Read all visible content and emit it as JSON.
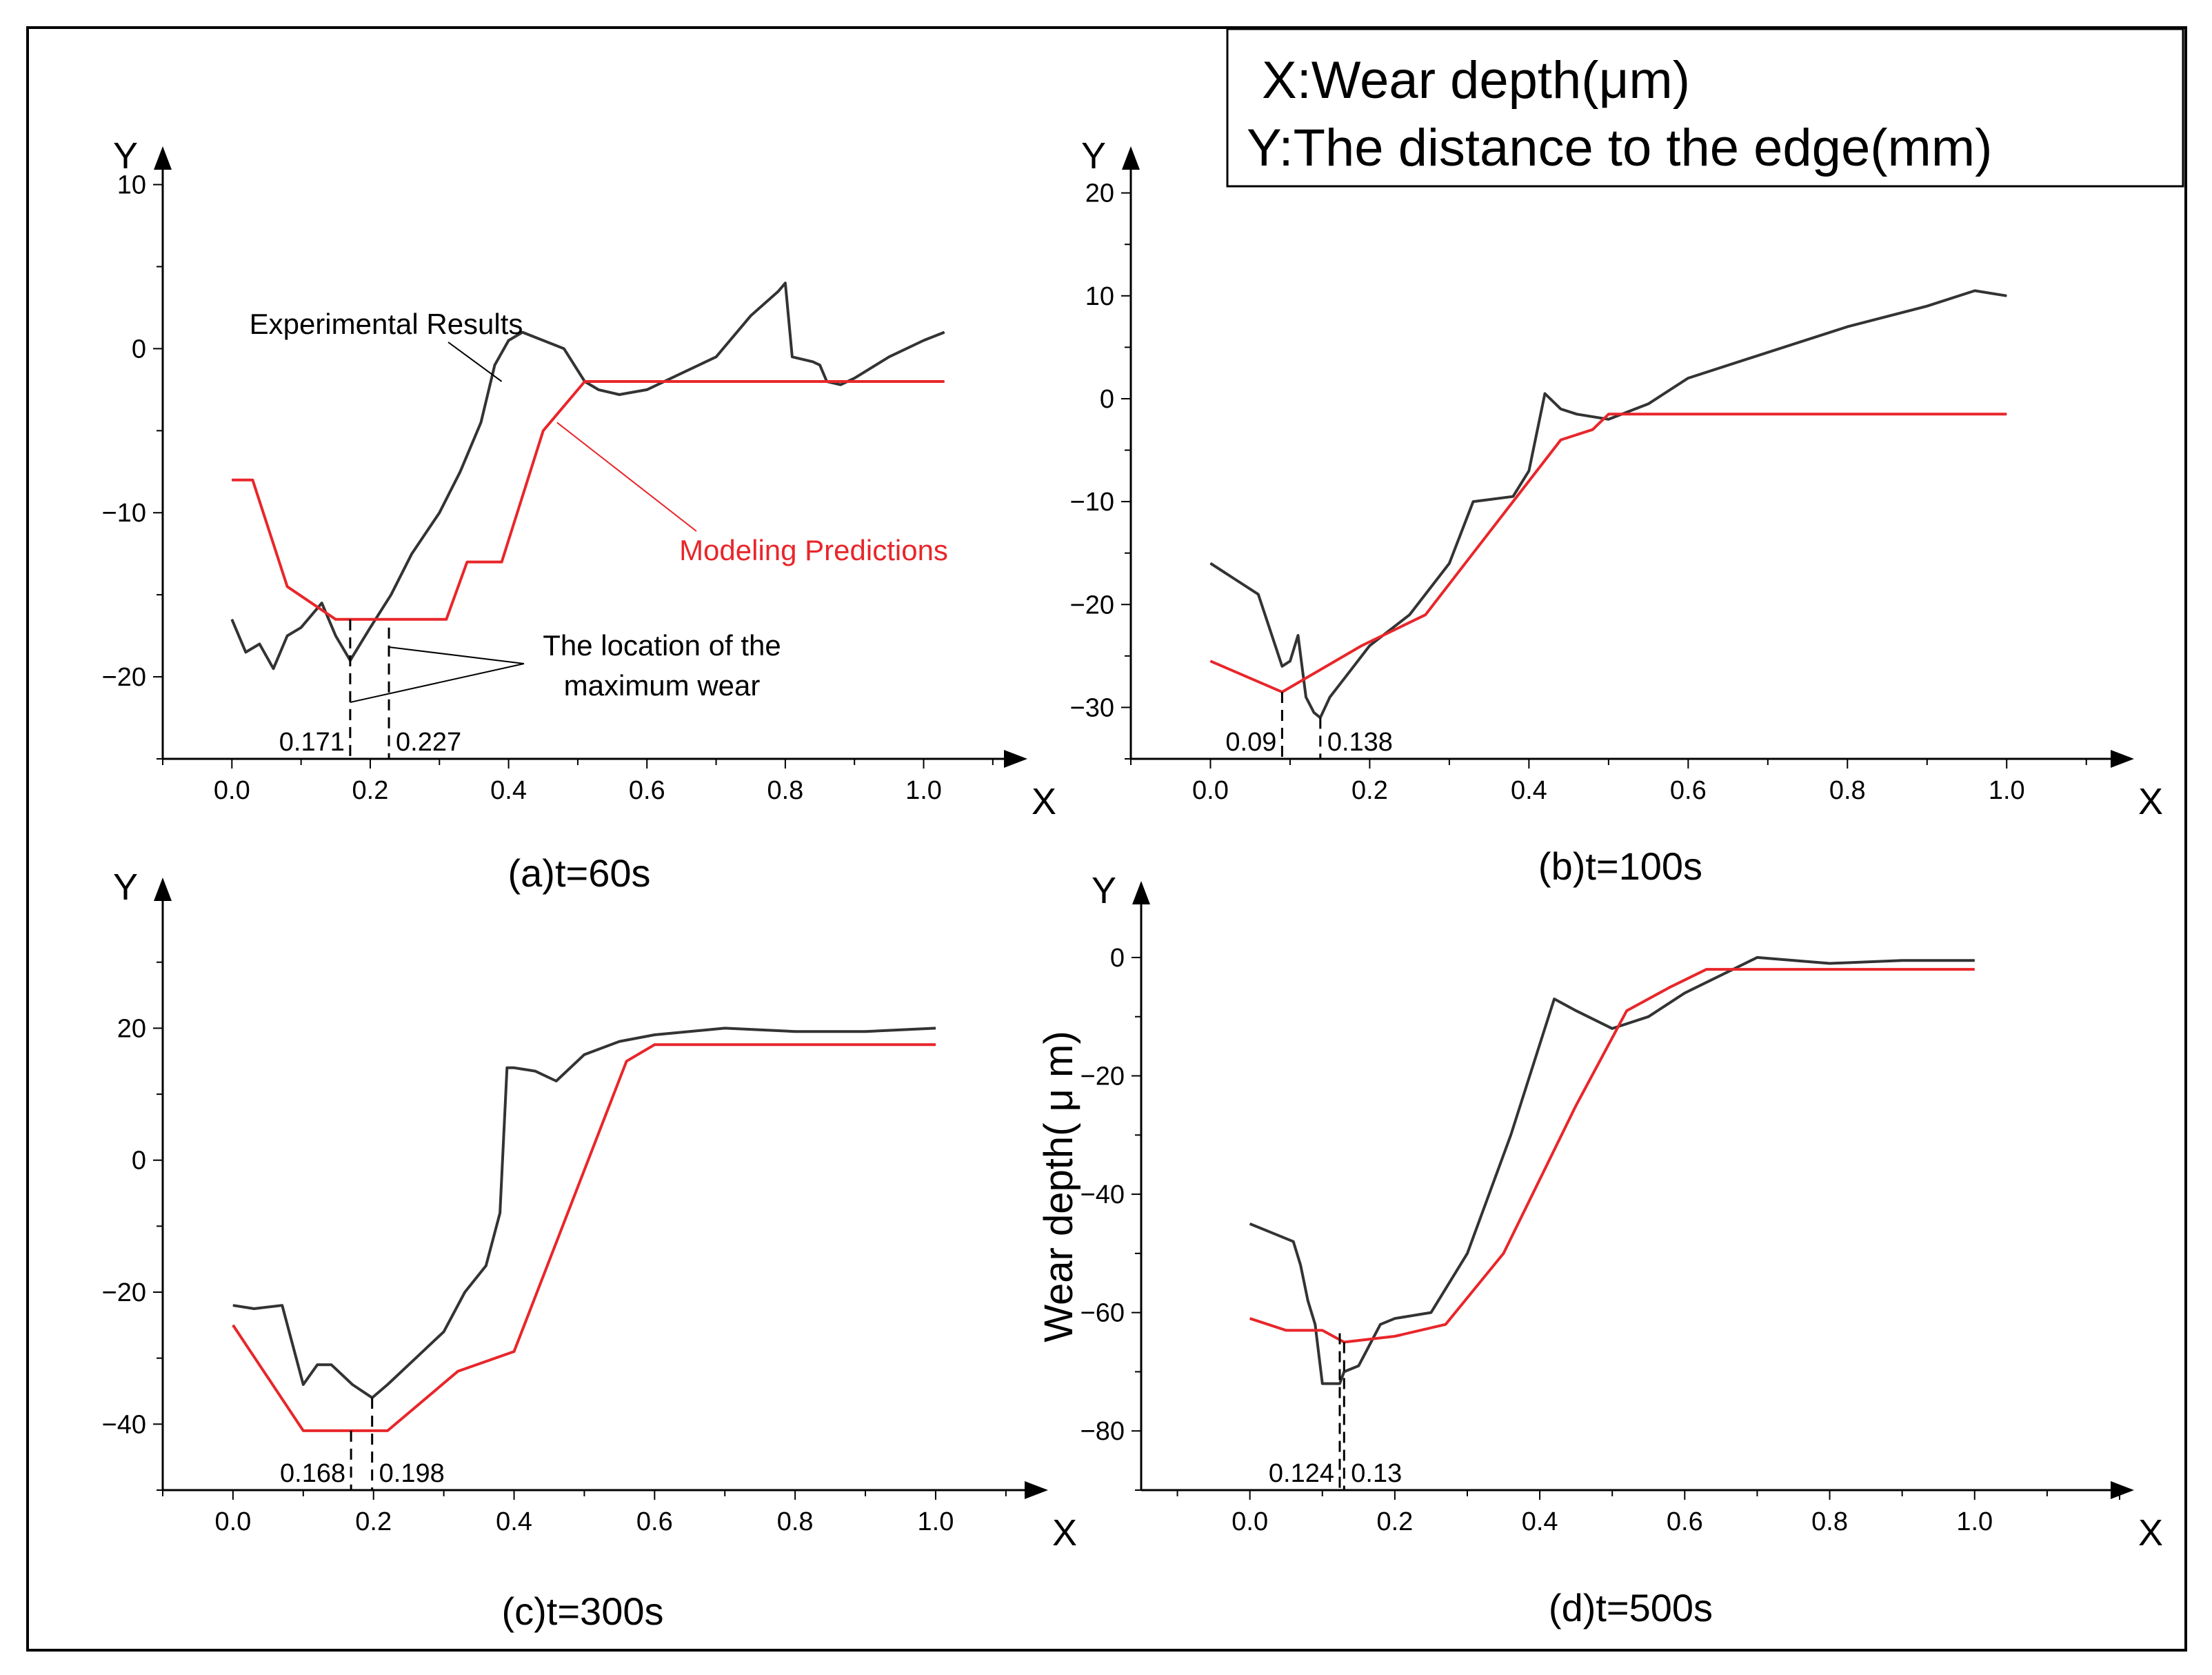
{
  "legend_box": {
    "x_def": "X:Wear depth(μm)",
    "y_def": "Y:The distance to the edge(mm)"
  },
  "colors": {
    "experimental": "#333333",
    "model": "#e8262a",
    "axis": "#000000"
  },
  "chart_data": [
    {
      "id": "a",
      "type": "line",
      "caption": "(a)t=60s",
      "xlabel": "X",
      "ylabel": "Y",
      "xticks": [
        0.0,
        0.2,
        0.4,
        0.6,
        0.8,
        1.0
      ],
      "xtick_labels": [
        "0.0",
        "0.2",
        "0.4",
        "0.6",
        "0.8",
        "1.0"
      ],
      "yticks": [
        10,
        0,
        -10,
        -20
      ],
      "ytick_labels": [
        "10",
        "0",
        "−10",
        "−20"
      ],
      "xlim": [
        -0.1,
        1.15
      ],
      "ylim": [
        -25,
        12
      ],
      "series": [
        {
          "name": "Experimental Results",
          "role": "experimental",
          "x": [
            0.0,
            0.02,
            0.04,
            0.06,
            0.08,
            0.1,
            0.12,
            0.13,
            0.15,
            0.171,
            0.2,
            0.23,
            0.26,
            0.3,
            0.33,
            0.36,
            0.38,
            0.4,
            0.42,
            0.45,
            0.48,
            0.51,
            0.53,
            0.56,
            0.6,
            0.65,
            0.7,
            0.75,
            0.79,
            0.8,
            0.81,
            0.84,
            0.85,
            0.86,
            0.88,
            0.9,
            0.95,
            1.0,
            1.03
          ],
          "y": [
            -16.5,
            -18.5,
            -18,
            -19.5,
            -17.5,
            -17,
            -16,
            -15.5,
            -17.5,
            -19,
            -17,
            -15,
            -12.5,
            -10,
            -7.5,
            -4.5,
            -1,
            0.5,
            1,
            0.5,
            0,
            -2,
            -2.5,
            -2.8,
            -2.5,
            -1.5,
            -0.5,
            2,
            3.5,
            4,
            -0.5,
            -0.8,
            -1,
            -2,
            -2.2,
            -1.8,
            -0.5,
            0.5,
            1
          ]
        },
        {
          "name": "Modeling Predictions",
          "role": "model",
          "x": [
            0.0,
            0.03,
            0.08,
            0.15,
            0.2,
            0.25,
            0.31,
            0.34,
            0.39,
            0.45,
            0.51,
            1.03
          ],
          "y": [
            -8,
            -8,
            -14.5,
            -16.5,
            -16.5,
            -16.5,
            -16.5,
            -13,
            -13,
            -5,
            -2,
            -2
          ]
        }
      ],
      "markers": [
        {
          "x": 0.171,
          "label": "0.171",
          "y_top": -16.5
        },
        {
          "x": 0.227,
          "label": "0.227",
          "y_top": -17
        }
      ],
      "annotations": {
        "experimental": "Experimental Results",
        "model": "Modeling Predictions",
        "max_wear_line1": "The location of the",
        "max_wear_line2": "maximum wear"
      }
    },
    {
      "id": "b",
      "type": "line",
      "caption": "(b)t=100s",
      "xlabel": "X",
      "ylabel": "Y",
      "xticks": [
        0.0,
        0.2,
        0.4,
        0.6,
        0.8,
        1.0
      ],
      "xtick_labels": [
        "0.0",
        "0.2",
        "0.4",
        "0.6",
        "0.8",
        "1.0"
      ],
      "yticks": [
        20,
        10,
        0,
        -10,
        -20,
        -30
      ],
      "ytick_labels": [
        "20",
        "10",
        "0",
        "−10",
        "−20",
        "−30"
      ],
      "xlim": [
        -0.1,
        1.16
      ],
      "ylim": [
        -35,
        24
      ],
      "series": [
        {
          "name": "Experimental Results",
          "role": "experimental",
          "x": [
            0.0,
            0.03,
            0.06,
            0.09,
            0.1,
            0.11,
            0.12,
            0.13,
            0.138,
            0.15,
            0.17,
            0.2,
            0.25,
            0.29,
            0.3,
            0.33,
            0.38,
            0.4,
            0.42,
            0.44,
            0.46,
            0.5,
            0.55,
            0.6,
            0.7,
            0.8,
            0.9,
            0.96,
            1.0
          ],
          "y": [
            -16,
            -17.5,
            -19,
            -26,
            -25.5,
            -23,
            -29,
            -30.5,
            -31,
            -29,
            -27,
            -24,
            -21,
            -17,
            -16,
            -10,
            -9.5,
            -7,
            0.5,
            -1,
            -1.5,
            -2,
            -0.5,
            2,
            4.5,
            7,
            9,
            10.5,
            10
          ]
        },
        {
          "name": "Modeling Predictions",
          "role": "model",
          "x": [
            0.0,
            0.09,
            0.19,
            0.27,
            0.33,
            0.44,
            0.48,
            0.5,
            1.0
          ],
          "y": [
            -25.5,
            -28.5,
            -24,
            -21,
            -15,
            -4,
            -3,
            -1.5,
            -1.5
          ]
        }
      ],
      "markers": [
        {
          "x": 0.09,
          "label": "0.09",
          "y_top": -28.5
        },
        {
          "x": 0.138,
          "label": "0.138",
          "y_top": -31
        }
      ]
    },
    {
      "id": "c",
      "type": "line",
      "caption": "(c)t=300s",
      "xlabel": "X",
      "ylabel": "Y",
      "xticks": [
        0.0,
        0.2,
        0.4,
        0.6,
        0.8,
        1.0
      ],
      "xtick_labels": [
        "0.0",
        "0.2",
        "0.4",
        "0.6",
        "0.8",
        "1.0"
      ],
      "yticks": [
        20,
        0,
        -20,
        -40
      ],
      "ytick_labels": [
        "20",
        "0",
        "−20",
        "−40"
      ],
      "xlim": [
        -0.1,
        1.16
      ],
      "ylim": [
        -50,
        42
      ],
      "series": [
        {
          "name": "Experimental Results",
          "role": "experimental",
          "x": [
            0.0,
            0.03,
            0.07,
            0.09,
            0.1,
            0.12,
            0.14,
            0.17,
            0.198,
            0.22,
            0.26,
            0.3,
            0.33,
            0.36,
            0.38,
            0.39,
            0.4,
            0.43,
            0.46,
            0.5,
            0.55,
            0.6,
            0.7,
            0.8,
            0.9,
            1.0
          ],
          "y": [
            -22,
            -22.5,
            -22,
            -30,
            -34,
            -31,
            -31,
            -34,
            -36,
            -34,
            -30,
            -26,
            -20,
            -16,
            -8,
            14,
            14,
            13.5,
            12,
            16,
            18,
            19,
            20,
            19.5,
            19.5,
            20
          ]
        },
        {
          "name": "Modeling Predictions",
          "role": "model",
          "x": [
            0.0,
            0.05,
            0.1,
            0.168,
            0.22,
            0.32,
            0.4,
            0.56,
            0.6,
            1.0
          ],
          "y": [
            -25,
            -33,
            -41,
            -41,
            -41,
            -32,
            -29,
            15,
            17.5,
            17.5
          ]
        }
      ],
      "markers": [
        {
          "x": 0.168,
          "label": "0.168",
          "y_top": -41
        },
        {
          "x": 0.198,
          "label": "0.198",
          "y_top": -36
        }
      ]
    },
    {
      "id": "d",
      "type": "line",
      "caption": "(d)t=500s",
      "xlabel": "X",
      "ylabel": "Y",
      "side_label": "Wear depth( μ m)",
      "xticks": [
        0.0,
        0.2,
        0.4,
        0.6,
        0.8,
        1.0
      ],
      "xtick_labels": [
        "0.0",
        "0.2",
        "0.4",
        "0.6",
        "0.8",
        "1.0"
      ],
      "yticks": [
        0,
        -20,
        -40,
        -60,
        -80
      ],
      "ytick_labels": [
        "0",
        "−20",
        "−40",
        "−60",
        "−80"
      ],
      "xlim": [
        -0.15,
        1.22
      ],
      "ylim": [
        -90,
        12
      ],
      "series": [
        {
          "name": "Experimental Results",
          "role": "experimental",
          "x": [
            0.0,
            0.03,
            0.06,
            0.07,
            0.08,
            0.09,
            0.1,
            0.124,
            0.13,
            0.15,
            0.18,
            0.2,
            0.25,
            0.3,
            0.36,
            0.42,
            0.45,
            0.5,
            0.55,
            0.6,
            0.7,
            0.8,
            0.9,
            1.0
          ],
          "y": [
            -45,
            -46.5,
            -48,
            -52,
            -58,
            -62,
            -72,
            -72,
            -70,
            -69,
            -62,
            -61,
            -60,
            -50,
            -30,
            -7,
            -9,
            -12,
            -10,
            -6,
            0,
            -1,
            -0.5,
            -0.5
          ]
        },
        {
          "name": "Modeling Predictions",
          "role": "model",
          "x": [
            0.0,
            0.05,
            0.1,
            0.13,
            0.2,
            0.27,
            0.35,
            0.45,
            0.52,
            0.58,
            0.63,
            1.0
          ],
          "y": [
            -61,
            -63,
            -63,
            -65,
            -64,
            -62,
            -50,
            -25,
            -9,
            -5,
            -2,
            -2
          ]
        }
      ],
      "markers": [
        {
          "x": 0.124,
          "label": "0.124",
          "y_top": -63.5
        },
        {
          "x": 0.13,
          "label": "0.13",
          "y_top": -65
        }
      ]
    }
  ]
}
